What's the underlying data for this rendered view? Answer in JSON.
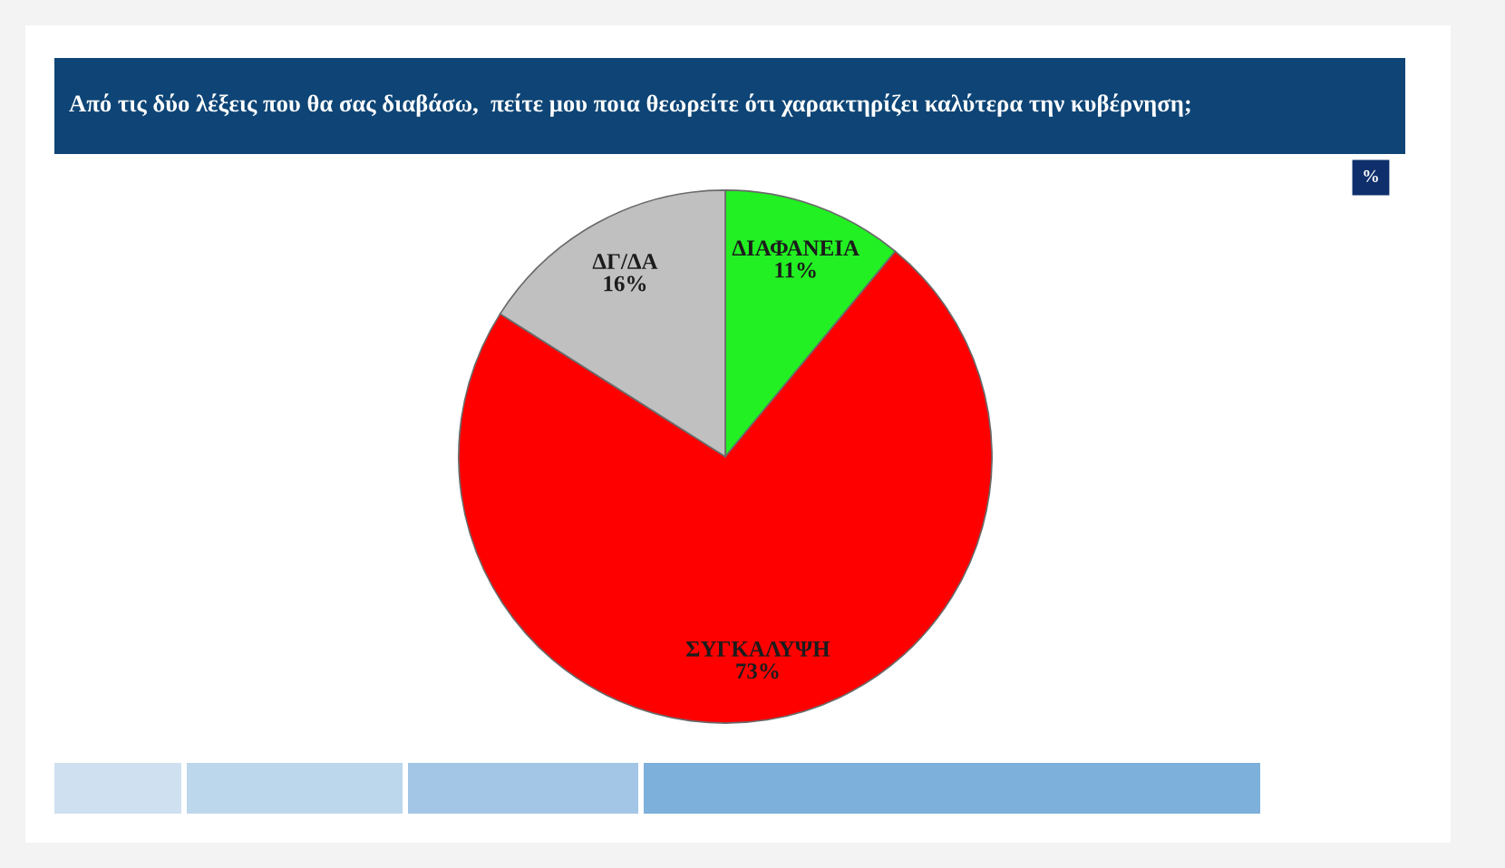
{
  "chart_data": {
    "type": "pie",
    "title": "Από τις δύο λέξεις που θα σας διαβάσω,  πείτε μου ποια θεωρείτε ότι χαρακτηρίζει καλύτερα την κυβέρνηση;",
    "categories": [
      "ΔΙΑΦΑΝΕΙΑ",
      "ΣΥΓΚΑΛΥΨΗ",
      "ΔΓ/ΔΑ"
    ],
    "values": [
      11,
      73,
      16
    ],
    "value_labels": [
      "11%",
      "73%",
      "16%"
    ],
    "colors": [
      "#22f022",
      "#ff0000",
      "#c0c0c0"
    ],
    "annotations": [
      "%"
    ],
    "legend": false
  }
}
